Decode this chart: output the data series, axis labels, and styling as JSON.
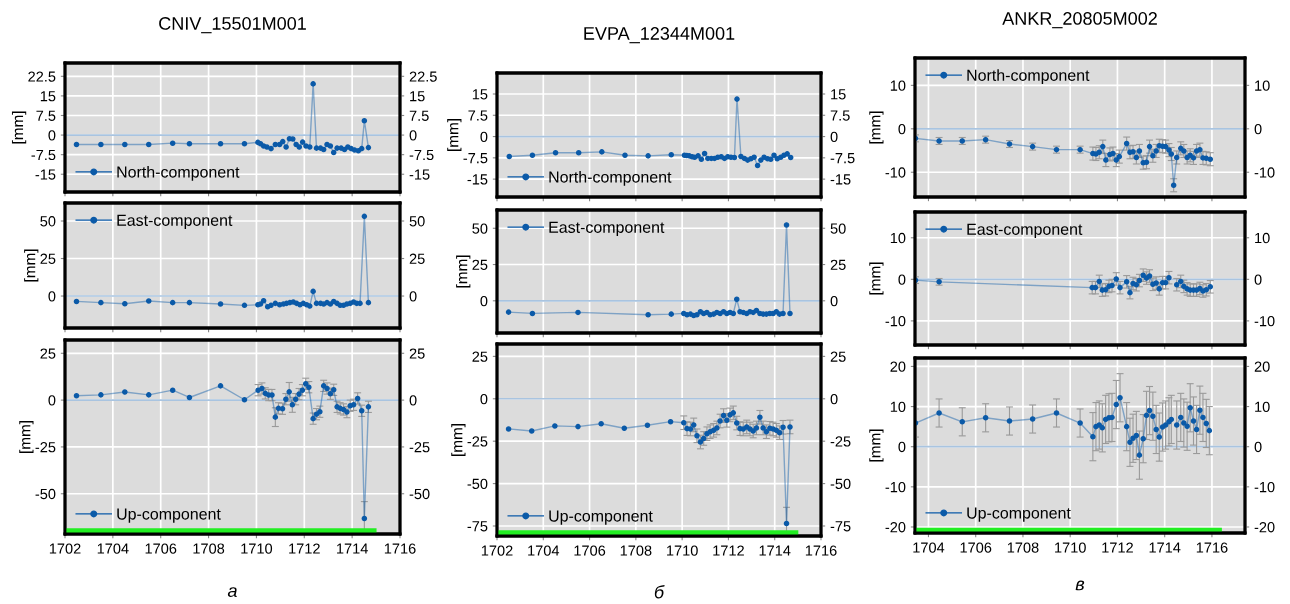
{
  "chart_data": [
    {
      "type": "line",
      "title": "CNIV_15501M001",
      "ylabel": "[mm]",
      "x": [
        1702.48,
        1703.5,
        1704.5,
        1705.5,
        1706.5,
        1707.2,
        1708.5,
        1709.5,
        1710.06,
        1710.17,
        1710.3,
        1710.44,
        1710.61,
        1710.79,
        1710.97,
        1711.1,
        1711.24,
        1711.38,
        1711.52,
        1711.66,
        1711.79,
        1711.93,
        1712.07,
        1712.23,
        1712.37,
        1712.51,
        1712.68,
        1712.81,
        1712.95,
        1713.09,
        1713.23,
        1713.37,
        1713.54,
        1713.68,
        1713.82,
        1713.96,
        1714.1,
        1714.26,
        1714.4,
        1714.51,
        1714.68
      ],
      "series": [
        {
          "name": "North-component",
          "color": "#0b5aa8",
          "values": [
            -3.6,
            -3.6,
            -3.6,
            -3.6,
            -3.1,
            -3.3,
            -3.3,
            -3.3,
            -2.8,
            -3.3,
            -4.2,
            -4.6,
            -5.2,
            -3.6,
            -3.6,
            -2.5,
            -4.6,
            -1.4,
            -1.5,
            -3.6,
            -4.6,
            -2.7,
            -4.2,
            -4.6,
            19.6,
            -5.0,
            -5.0,
            -5.5,
            -3.6,
            -4.2,
            -6.7,
            -5.0,
            -5.0,
            -5.5,
            -4.6,
            -5.2,
            -5.7,
            -6.0,
            -5.2,
            5.5,
            -4.8
          ]
        }
      ],
      "xlim": [
        1702,
        1716
      ],
      "xticks": [
        1702,
        1704,
        1706,
        1708,
        1710,
        1712,
        1714,
        1716
      ],
      "ylim": [
        -21.8,
        27.6
      ],
      "yticks": [
        -15,
        -7.5,
        0,
        7.5,
        15,
        22.5
      ],
      "y2lim": [
        -21.8,
        27.6
      ],
      "y2ticks": [
        -15,
        -7.5,
        0,
        7.5,
        15,
        22.5
      ],
      "ref_lines": [
        {
          "axis": "y",
          "value": 0,
          "color": "#a9c4e0"
        }
      ],
      "grid": true,
      "legend": "bottom left",
      "marker": "circle",
      "line_style": "solid",
      "tick_labels": "y"
    },
    {
      "type": "line",
      "ylabel": "[mm]",
      "x": [
        1702.48,
        1703.5,
        1704.5,
        1705.5,
        1706.5,
        1707.2,
        1708.5,
        1709.5,
        1710.06,
        1710.17,
        1710.3,
        1710.47,
        1710.61,
        1710.79,
        1710.97,
        1711.13,
        1711.26,
        1711.4,
        1711.54,
        1711.68,
        1711.82,
        1711.96,
        1712.1,
        1712.23,
        1712.37,
        1712.51,
        1712.68,
        1712.81,
        1712.95,
        1713.09,
        1713.23,
        1713.37,
        1713.5,
        1713.64,
        1713.78,
        1713.92,
        1714.06,
        1714.19,
        1714.33,
        1714.51,
        1714.68
      ],
      "series": [
        {
          "name": "East-component",
          "color": "#0b5aa8",
          "values": [
            -3.6,
            -4.4,
            -5.1,
            -3.3,
            -4.4,
            -4.4,
            -5.3,
            -6.2,
            -5.8,
            -5.3,
            -3.1,
            -7.1,
            -6.2,
            -4.9,
            -5.8,
            -5.3,
            -4.9,
            -4.4,
            -4.0,
            -4.9,
            -5.8,
            -4.9,
            -5.8,
            -6.7,
            3.1,
            -4.9,
            -4.9,
            -5.3,
            -4.4,
            -5.3,
            -3.6,
            -4.9,
            -6.2,
            -6.2,
            -5.3,
            -4.9,
            -4.0,
            -4.9,
            -4.9,
            53.1,
            -4.4
          ]
        }
      ],
      "xlim": [
        1702,
        1716
      ],
      "xticks": [
        1702,
        1704,
        1706,
        1708,
        1710,
        1712,
        1714,
        1716
      ],
      "ylim": [
        -21.3,
        62
      ],
      "yticks": [
        0,
        25,
        50
      ],
      "y2lim": [
        -21.3,
        62
      ],
      "y2ticks": [
        0,
        25,
        50
      ],
      "ref_lines": [
        {
          "axis": "y",
          "value": 0,
          "color": "#a9c4e0"
        }
      ],
      "grid": true,
      "legend": "top left",
      "marker": "circle",
      "line_style": "solid",
      "tick_labels": "y"
    },
    {
      "type": "line",
      "ylabel": "[mm]",
      "x": [
        1702.48,
        1703.5,
        1704.5,
        1705.5,
        1706.5,
        1707.2,
        1708.5,
        1709.5,
        1710.07,
        1710.23,
        1710.37,
        1710.51,
        1710.65,
        1710.79,
        1710.92,
        1711.09,
        1711.23,
        1711.37,
        1711.5,
        1711.64,
        1711.78,
        1711.92,
        1712.06,
        1712.19,
        1712.37,
        1712.51,
        1712.65,
        1712.81,
        1712.95,
        1713.09,
        1713.23,
        1713.37,
        1713.5,
        1713.64,
        1713.78,
        1713.92,
        1714.06,
        1714.23,
        1714.4,
        1714.51,
        1714.68
      ],
      "series": [
        {
          "name": "Up-component",
          "color": "#0b5aa8",
          "values": [
            2.3,
            2.8,
            4.3,
            2.8,
            5.3,
            1.4,
            7.6,
            0.2,
            5.3,
            6.2,
            3.6,
            2.7,
            2.7,
            -9.1,
            -4.4,
            -4.6,
            0.5,
            4.4,
            -2.5,
            0.5,
            3.2,
            5.3,
            8.7,
            6.9,
            -9.9,
            -7.5,
            -6.2,
            7.6,
            6.2,
            3.4,
            5.5,
            -3.6,
            -4.4,
            -5.0,
            -6.4,
            -3.0,
            -2.5,
            0.9,
            -5.7,
            -63.2,
            -3.6
          ],
          "errors": [
            null,
            null,
            null,
            null,
            null,
            null,
            null,
            null,
            3,
            3,
            3,
            3,
            3,
            5,
            3,
            3,
            3,
            5,
            4,
            3,
            3,
            3,
            3,
            3,
            3,
            3,
            3,
            3,
            3,
            3,
            3,
            3,
            3,
            3,
            3,
            3,
            3,
            3,
            3,
            9,
            3
          ]
        }
      ],
      "xlim": [
        1702,
        1716
      ],
      "xticks": [
        1702,
        1704,
        1706,
        1708,
        1710,
        1712,
        1714,
        1716
      ],
      "ylim": [
        -71.5,
        32.1
      ],
      "yticks": [
        -50,
        -25,
        0,
        25
      ],
      "y2lim": [
        -71.5,
        32.1
      ],
      "y2ticks": [
        -50,
        -25,
        0,
        25
      ],
      "ref_lines": [
        {
          "axis": "y",
          "value": 0,
          "color": "#a9c4e0"
        }
      ],
      "annotations": [
        "а"
      ],
      "grid": true,
      "legend": "bottom left",
      "marker": "circle",
      "line_style": "solid"
    },
    {
      "type": "line",
      "title": "EVPA_12344M001",
      "ylabel": "[mm]",
      "x": [
        1702.53,
        1703.53,
        1704.53,
        1705.53,
        1706.53,
        1707.53,
        1708.53,
        1709.53,
        1710.1,
        1710.2,
        1710.31,
        1710.43,
        1710.54,
        1710.69,
        1710.83,
        1710.97,
        1711.11,
        1711.26,
        1711.4,
        1711.54,
        1711.69,
        1711.83,
        1711.97,
        1712.11,
        1712.26,
        1712.37,
        1712.54,
        1712.69,
        1712.83,
        1712.97,
        1713.11,
        1713.26,
        1713.4,
        1713.54,
        1713.69,
        1713.83,
        1713.97,
        1714.11,
        1714.26,
        1714.4,
        1714.54,
        1714.69
      ],
      "series": [
        {
          "name": "North-component",
          "color": "#0b5aa8",
          "values": [
            -7.0,
            -6.6,
            -5.7,
            -5.7,
            -5.4,
            -6.6,
            -6.8,
            -6.4,
            -6.6,
            -6.7,
            -6.8,
            -7.1,
            -7.3,
            -6.8,
            -8.0,
            -6.0,
            -7.7,
            -7.7,
            -7.7,
            -7.3,
            -7.1,
            -7.7,
            -7.1,
            -7.3,
            -7.4,
            13.2,
            -7.0,
            -7.7,
            -8.3,
            -7.8,
            -7.3,
            -10.2,
            -8.3,
            -7.3,
            -7.8,
            -8.0,
            -6.6,
            -7.8,
            -7.3,
            -6.6,
            -6.1,
            -7.4
          ]
        }
      ],
      "xlim": [
        1702,
        1716
      ],
      "xticks": [
        1702,
        1704,
        1706,
        1708,
        1710,
        1712,
        1714,
        1716
      ],
      "ylim": [
        -21.3,
        22.4
      ],
      "yticks": [
        -15,
        -7.5,
        0,
        7.5,
        15
      ],
      "y2lim": [
        -21.3,
        22.4
      ],
      "y2ticks": [
        -15,
        -7.5,
        0,
        7.5,
        15
      ],
      "ref_lines": [
        {
          "axis": "y",
          "value": 0,
          "color": "#a9c4e0"
        }
      ],
      "grid": true,
      "legend": "bottom left",
      "marker": "circle",
      "line_style": "solid",
      "tick_labels": "y"
    },
    {
      "type": "line",
      "ylabel": "[mm]",
      "x": [
        1702.5,
        1703.53,
        1705.5,
        1708.53,
        1709.53,
        1710.07,
        1710.21,
        1710.36,
        1710.5,
        1710.64,
        1710.79,
        1710.93,
        1711.07,
        1711.21,
        1711.36,
        1711.5,
        1711.64,
        1711.79,
        1711.93,
        1712.07,
        1712.21,
        1712.36,
        1712.5,
        1712.64,
        1712.79,
        1712.93,
        1713.07,
        1713.21,
        1713.36,
        1713.5,
        1713.64,
        1713.79,
        1713.93,
        1714.07,
        1714.21,
        1714.36,
        1714.51,
        1714.66
      ],
      "series": [
        {
          "name": "East-component",
          "color": "#0b5aa8",
          "values": [
            -7.8,
            -8.7,
            -8.0,
            -9.6,
            -9.2,
            -8.7,
            -9.6,
            -9.2,
            -10.1,
            -9.6,
            -7.6,
            -8.7,
            -8.0,
            -9.6,
            -9.2,
            -8.0,
            -8.7,
            -7.6,
            -8.7,
            -8.0,
            -8.7,
            1.1,
            -7.6,
            -8.0,
            -8.7,
            -7.6,
            -8.0,
            -6.7,
            -8.7,
            -9.2,
            -9.2,
            -8.7,
            -8.7,
            -7.6,
            -9.2,
            -8.7,
            52.3,
            -8.7
          ]
        }
      ],
      "xlim": [
        1702,
        1716
      ],
      "xticks": [
        1702,
        1704,
        1706,
        1708,
        1710,
        1712,
        1714,
        1716
      ],
      "ylim": [
        -22.2,
        62.6
      ],
      "yticks": [
        0,
        25,
        50
      ],
      "y2lim": [
        -22.2,
        62.6
      ],
      "y2ticks": [
        0,
        25,
        50
      ],
      "ref_lines": [
        {
          "axis": "y",
          "value": 0,
          "color": "#a9c4e0"
        }
      ],
      "grid": true,
      "legend": "top left",
      "marker": "circle",
      "line_style": "solid",
      "tick_labels": "y"
    },
    {
      "type": "line",
      "ylabel": "[mm]",
      "x": [
        1702.5,
        1703.5,
        1704.5,
        1705.5,
        1706.5,
        1707.5,
        1708.5,
        1709.5,
        1710.07,
        1710.21,
        1710.36,
        1710.5,
        1710.64,
        1710.79,
        1710.93,
        1711.07,
        1711.21,
        1711.36,
        1711.5,
        1711.64,
        1711.79,
        1711.93,
        1712.07,
        1712.21,
        1712.36,
        1712.5,
        1712.64,
        1712.79,
        1712.93,
        1713.07,
        1713.21,
        1713.36,
        1713.5,
        1713.64,
        1713.79,
        1713.93,
        1714.07,
        1714.21,
        1714.36,
        1714.51,
        1714.66
      ],
      "series": [
        {
          "name": "Up-component",
          "color": "#0b5aa8",
          "values": [
            -17.8,
            -19.0,
            -16.0,
            -16.4,
            -14.7,
            -17.4,
            -15.6,
            -13.5,
            -14.1,
            -17.6,
            -17.8,
            -15.4,
            -21.8,
            -25.5,
            -23.4,
            -20.6,
            -19.4,
            -18.6,
            -17.2,
            -13.1,
            -9.9,
            -12.7,
            -9.5,
            -8.3,
            -14.3,
            -17.6,
            -17.8,
            -16.6,
            -17.8,
            -19.0,
            -17.2,
            -10.9,
            -17.2,
            -19.4,
            -17.4,
            -17.8,
            -18.6,
            -20.0,
            -16.8,
            -73.5,
            -16.6
          ],
          "errors": [
            null,
            null,
            null,
            null,
            null,
            null,
            null,
            null,
            4,
            4,
            4,
            4,
            4,
            4,
            4,
            4,
            4,
            4,
            4,
            4,
            4,
            4,
            4,
            4,
            4,
            4,
            4,
            4,
            4,
            4,
            4,
            4,
            4,
            4,
            4,
            4,
            4,
            4,
            4,
            9.5,
            4
          ]
        }
      ],
      "xlim": [
        1702,
        1716
      ],
      "xticks": [
        1702,
        1704,
        1706,
        1708,
        1710,
        1712,
        1714,
        1716
      ],
      "ylim": [
        -80.9,
        32.3
      ],
      "yticks": [
        -75,
        -50,
        -25,
        0,
        25
      ],
      "y2lim": [
        -80.9,
        32.3
      ],
      "y2ticks": [
        -75,
        -50,
        -25,
        0,
        25
      ],
      "ref_lines": [
        {
          "axis": "y",
          "value": 0,
          "color": "#a9c4e0"
        }
      ],
      "annotations": [
        "б"
      ],
      "grid": true,
      "legend": "bottom left",
      "marker": "circle",
      "line_style": "solid"
    },
    {
      "type": "line",
      "title": "ANKR_20805M002",
      "ylabel": "[mm]",
      "x": [
        1703.45,
        1704.45,
        1705.43,
        1706.42,
        1707.43,
        1708.41,
        1709.42,
        1710.42,
        1710.96,
        1711.09,
        1711.23,
        1711.38,
        1711.51,
        1711.68,
        1711.81,
        1711.95,
        1712.08,
        1712.39,
        1712.53,
        1712.66,
        1712.8,
        1712.93,
        1713.09,
        1713.23,
        1713.36,
        1713.5,
        1713.64,
        1713.77,
        1713.91,
        1714.04,
        1714.18,
        1714.28,
        1714.38,
        1714.51,
        1714.68,
        1714.81,
        1714.95,
        1715.08,
        1715.22,
        1715.35,
        1715.49,
        1715.62,
        1715.76,
        1715.93
      ],
      "series": [
        {
          "name": "North-component",
          "color": "#0b5aa8",
          "values": [
            -2.2,
            -2.8,
            -2.8,
            -2.5,
            -3.5,
            -4.1,
            -4.8,
            -4.8,
            -5.7,
            -5.8,
            -5.4,
            -4.1,
            -7.2,
            -5.9,
            -5.7,
            -7.2,
            -6.4,
            -3.4,
            -5.4,
            -5.3,
            -6.6,
            -5.1,
            -7.8,
            -7.7,
            -4.1,
            -6.2,
            -5.1,
            -3.9,
            -4.0,
            -4.1,
            -4.9,
            -5.8,
            -13.0,
            -6.6,
            -4.5,
            -5.1,
            -6.6,
            -6.1,
            -6.7,
            -5.1,
            -4.8,
            -6.7,
            -6.8,
            -7.0
          ],
          "errors": [
            0.8,
            0.8,
            0.8,
            0.8,
            0.8,
            0.8,
            0.8,
            0.8,
            1.5,
            1.5,
            1.5,
            1.5,
            1.5,
            1.5,
            1.5,
            1.5,
            1.5,
            1.5,
            1.5,
            1.5,
            1.5,
            1.5,
            1.5,
            1.5,
            1.5,
            1.5,
            1.5,
            1.5,
            1.5,
            1.5,
            1.5,
            1.5,
            1.5,
            1.5,
            1.5,
            1.5,
            1.5,
            1.5,
            1.5,
            1.5,
            1.5,
            1.5,
            1.5,
            1.5
          ]
        }
      ],
      "xlim": [
        1703.43,
        1717.4
      ],
      "xticks": [
        1704,
        1706,
        1708,
        1710,
        1712,
        1714,
        1716
      ],
      "ylim": [
        -15.7,
        16.3
      ],
      "yticks": [
        -10,
        0,
        10
      ],
      "y2lim": [
        -15.7,
        16.3
      ],
      "y2ticks": [
        -10,
        0,
        10
      ],
      "ref_lines": [
        {
          "axis": "y",
          "value": 0,
          "color": "#a9c4e0"
        }
      ],
      "grid": true,
      "legend": "top left",
      "marker": "circle",
      "line_style": "solid",
      "tick_labels": "y"
    },
    {
      "type": "line",
      "ylabel": "[mm]",
      "x": [
        1703.45,
        1704.45,
        1710.93,
        1711.07,
        1711.23,
        1711.36,
        1711.5,
        1711.64,
        1711.77,
        1711.95,
        1712.11,
        1712.39,
        1712.53,
        1712.66,
        1712.8,
        1712.93,
        1713.09,
        1713.23,
        1713.36,
        1713.5,
        1713.64,
        1713.77,
        1713.91,
        1714.04,
        1714.18,
        1714.36,
        1714.51,
        1714.68,
        1714.81,
        1714.95,
        1715.08,
        1715.22,
        1715.35,
        1715.49,
        1715.62,
        1715.76,
        1715.93
      ],
      "series": [
        {
          "name": "East-component",
          "color": "#0b5aa8",
          "values": [
            -0.2,
            -0.6,
            -2.0,
            -2.0,
            -0.5,
            -2.6,
            -2.5,
            -1.7,
            -1.5,
            0.1,
            -2.0,
            -0.6,
            -3.2,
            -1.0,
            -1.3,
            -0.3,
            1.0,
            0.3,
            0.8,
            -1.2,
            -0.9,
            -2.3,
            -0.8,
            -0.8,
            0.4,
            null,
            -1.3,
            -0.5,
            -1.7,
            -2.3,
            -2.6,
            -2.6,
            -2.6,
            -2.2,
            -2.8,
            -2.5,
            -1.8
          ],
          "errors": [
            0.8,
            0.8,
            1.5,
            1.5,
            1.5,
            1.5,
            1.5,
            1.5,
            1.5,
            1.5,
            1.5,
            1.5,
            1.5,
            1.5,
            1.5,
            1.5,
            1.5,
            1.5,
            1.5,
            1.5,
            1.5,
            1.5,
            1.5,
            1.5,
            1.5,
            null,
            1.5,
            1.5,
            1.5,
            1.5,
            1.5,
            1.5,
            1.5,
            1.5,
            1.5,
            1.5,
            1.5
          ]
        }
      ],
      "xlim": [
        1703.43,
        1717.4
      ],
      "xticks": [
        1704,
        1706,
        1708,
        1710,
        1712,
        1714,
        1716
      ],
      "ylim": [
        -15.8,
        16.2
      ],
      "yticks": [
        -10,
        0,
        10
      ],
      "y2lim": [
        -15.8,
        16.2
      ],
      "y2ticks": [
        -10,
        0,
        10
      ],
      "ref_lines": [
        {
          "axis": "y",
          "value": 0,
          "color": "#a9c4e0"
        }
      ],
      "grid": true,
      "legend": "top left",
      "marker": "circle",
      "line_style": "solid",
      "tick_labels": "y"
    },
    {
      "type": "line",
      "ylabel": "[mm]",
      "x": [
        1703.45,
        1704.45,
        1705.43,
        1706.42,
        1707.43,
        1708.41,
        1709.42,
        1710.42,
        1710.96,
        1711.09,
        1711.23,
        1711.36,
        1711.5,
        1711.64,
        1711.77,
        1711.95,
        1712.11,
        1712.39,
        1712.53,
        1712.66,
        1712.8,
        1712.93,
        1713.09,
        1713.23,
        1713.36,
        1713.5,
        1713.64,
        1713.77,
        1713.91,
        1714.04,
        1714.18,
        1714.28,
        1714.38,
        1714.51,
        1714.68,
        1714.81,
        1714.95,
        1715.08,
        1715.22,
        1715.35,
        1715.49,
        1715.62,
        1715.76,
        1715.89
      ],
      "series": [
        {
          "name": "Up-component",
          "color": "#0b5aa8",
          "values": [
            5.9,
            8.4,
            6.2,
            7.2,
            6.4,
            6.9,
            8.4,
            5.9,
            2.5,
            5.0,
            5.4,
            4.7,
            6.8,
            7.2,
            7.3,
            10.5,
            12.2,
            5.0,
            1.1,
            2.1,
            2.8,
            -2.1,
            2.0,
            7.8,
            9.0,
            7.6,
            4.3,
            2.4,
            4.9,
            5.4,
            6.2,
            6.8,
            null,
            5.4,
            7.3,
            5.9,
            5.1,
            9.7,
            6.4,
            4.3,
            9.1,
            7.3,
            5.8,
            4.0
          ],
          "errors": [
            3.5,
            3.5,
            3.5,
            3.5,
            3.5,
            3.5,
            3.5,
            3.5,
            6,
            6,
            6,
            6,
            6,
            6,
            6,
            6,
            6,
            6,
            6,
            6,
            6,
            6,
            6,
            6,
            6,
            6,
            6,
            6,
            6,
            6,
            6,
            6,
            null,
            6,
            6,
            6,
            6,
            6,
            6,
            6,
            6,
            6,
            6,
            6
          ]
        }
      ],
      "xlim": [
        1703.43,
        1717.4
      ],
      "xticks": [
        1704,
        1706,
        1708,
        1710,
        1712,
        1714,
        1716
      ],
      "ylim": [
        -21.5,
        22.1
      ],
      "yticks": [
        -20,
        -10,
        0,
        10,
        20
      ],
      "y2lim": [
        -21.5,
        22.1
      ],
      "y2ticks": [
        -20,
        -10,
        0,
        10,
        20
      ],
      "ref_lines": [
        {
          "axis": "y",
          "value": 0,
          "color": "#a9c4e0"
        }
      ],
      "annotations": [
        "в"
      ],
      "grid": true,
      "legend": "bottom left",
      "marker": "circle",
      "line_style": "solid"
    }
  ]
}
